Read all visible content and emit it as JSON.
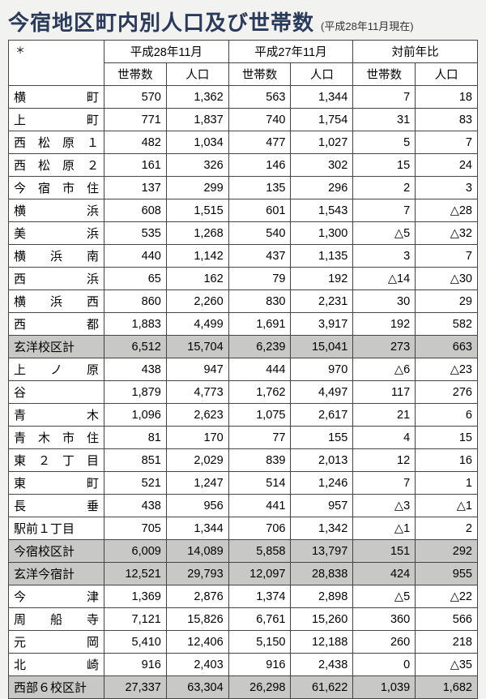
{
  "title": "今宿地区町内別人口及び世帯数",
  "subtitle": "(平成28年11月現在)",
  "year1": "平成28年11月",
  "year2": "平成27年11月",
  "year3": "対前年比",
  "sub_households": "世帯数",
  "sub_population": "人口",
  "rows": [
    {
      "name": "横町",
      "spaced": true,
      "h28h": "570",
      "h28p": "1,362",
      "h27h": "563",
      "h27p": "1,344",
      "dh": "7",
      "dp": "18",
      "shaded": false
    },
    {
      "name": "上町",
      "spaced": true,
      "h28h": "771",
      "h28p": "1,837",
      "h27h": "740",
      "h27p": "1,754",
      "dh": "31",
      "dp": "83",
      "shaded": false
    },
    {
      "name": "西松原１",
      "spaced": true,
      "h28h": "482",
      "h28p": "1,034",
      "h27h": "477",
      "h27p": "1,027",
      "dh": "5",
      "dp": "7",
      "shaded": false
    },
    {
      "name": "西松原２",
      "spaced": true,
      "h28h": "161",
      "h28p": "326",
      "h27h": "146",
      "h27p": "302",
      "dh": "15",
      "dp": "24",
      "shaded": false
    },
    {
      "name": "今宿市住",
      "spaced": true,
      "h28h": "137",
      "h28p": "299",
      "h27h": "135",
      "h27p": "296",
      "dh": "2",
      "dp": "3",
      "shaded": false
    },
    {
      "name": "横浜",
      "spaced": true,
      "h28h": "608",
      "h28p": "1,515",
      "h27h": "601",
      "h27p": "1,543",
      "dh": "7",
      "dp": "△28",
      "shaded": false
    },
    {
      "name": "美浜",
      "spaced": true,
      "h28h": "535",
      "h28p": "1,268",
      "h27h": "540",
      "h27p": "1,300",
      "dh": "△5",
      "dp": "△32",
      "shaded": false
    },
    {
      "name": "横浜南",
      "spaced": true,
      "h28h": "440",
      "h28p": "1,142",
      "h27h": "437",
      "h27p": "1,135",
      "dh": "3",
      "dp": "7",
      "shaded": false
    },
    {
      "name": "西浜",
      "spaced": true,
      "h28h": "65",
      "h28p": "162",
      "h27h": "79",
      "h27p": "192",
      "dh": "△14",
      "dp": "△30",
      "shaded": false
    },
    {
      "name": "横浜西",
      "spaced": true,
      "h28h": "860",
      "h28p": "2,260",
      "h27h": "830",
      "h27p": "2,231",
      "dh": "30",
      "dp": "29",
      "shaded": false
    },
    {
      "name": "西都",
      "spaced": true,
      "h28h": "1,883",
      "h28p": "4,499",
      "h27h": "1,691",
      "h27p": "3,917",
      "dh": "192",
      "dp": "582",
      "shaded": false
    },
    {
      "name": "玄洋校区計",
      "spaced": false,
      "h28h": "6,512",
      "h28p": "15,704",
      "h27h": "6,239",
      "h27p": "15,041",
      "dh": "273",
      "dp": "663",
      "shaded": true
    },
    {
      "name": "上ノ原",
      "spaced": true,
      "h28h": "438",
      "h28p": "947",
      "h27h": "444",
      "h27p": "970",
      "dh": "△6",
      "dp": "△23",
      "shaded": false
    },
    {
      "name": "谷",
      "spaced": true,
      "h28h": "1,879",
      "h28p": "4,773",
      "h27h": "1,762",
      "h27p": "4,497",
      "dh": "117",
      "dp": "276",
      "shaded": false
    },
    {
      "name": "青木",
      "spaced": true,
      "h28h": "1,096",
      "h28p": "2,623",
      "h27h": "1,075",
      "h27p": "2,617",
      "dh": "21",
      "dp": "6",
      "shaded": false
    },
    {
      "name": "青木市住",
      "spaced": true,
      "h28h": "81",
      "h28p": "170",
      "h27h": "77",
      "h27p": "155",
      "dh": "4",
      "dp": "15",
      "shaded": false
    },
    {
      "name": "東２丁目",
      "spaced": true,
      "h28h": "851",
      "h28p": "2,029",
      "h27h": "839",
      "h27p": "2,013",
      "dh": "12",
      "dp": "16",
      "shaded": false
    },
    {
      "name": "東町",
      "spaced": true,
      "h28h": "521",
      "h28p": "1,247",
      "h27h": "514",
      "h27p": "1,246",
      "dh": "7",
      "dp": "1",
      "shaded": false
    },
    {
      "name": "長垂",
      "spaced": true,
      "h28h": "438",
      "h28p": "956",
      "h27h": "441",
      "h27p": "957",
      "dh": "△3",
      "dp": "△1",
      "shaded": false
    },
    {
      "name": "駅前１丁目",
      "spaced": false,
      "h28h": "705",
      "h28p": "1,344",
      "h27h": "706",
      "h27p": "1,342",
      "dh": "△1",
      "dp": "2",
      "shaded": false
    },
    {
      "name": "今宿校区計",
      "spaced": false,
      "h28h": "6,009",
      "h28p": "14,089",
      "h27h": "5,858",
      "h27p": "13,797",
      "dh": "151",
      "dp": "292",
      "shaded": true
    },
    {
      "name": "玄洋今宿計",
      "spaced": false,
      "h28h": "12,521",
      "h28p": "29,793",
      "h27h": "12,097",
      "h27p": "28,838",
      "dh": "424",
      "dp": "955",
      "shaded": true
    },
    {
      "name": "今津",
      "spaced": true,
      "h28h": "1,369",
      "h28p": "2,876",
      "h27h": "1,374",
      "h27p": "2,898",
      "dh": "△5",
      "dp": "△22",
      "shaded": false
    },
    {
      "name": "周船寺",
      "spaced": true,
      "h28h": "7,121",
      "h28p": "15,826",
      "h27h": "6,761",
      "h27p": "15,260",
      "dh": "360",
      "dp": "566",
      "shaded": false
    },
    {
      "name": "元岡",
      "spaced": true,
      "h28h": "5,410",
      "h28p": "12,406",
      "h27h": "5,150",
      "h27p": "12,188",
      "dh": "260",
      "dp": "218",
      "shaded": false
    },
    {
      "name": "北崎",
      "spaced": true,
      "h28h": "916",
      "h28p": "2,403",
      "h27h": "916",
      "h27p": "2,438",
      "dh": "0",
      "dp": "△35",
      "shaded": false
    },
    {
      "name": "西部６校区計",
      "spaced": false,
      "h28h": "27,337",
      "h28p": "63,304",
      "h27h": "26,298",
      "h27p": "61,622",
      "dh": "1,039",
      "dp": "1,682",
      "shaded": true
    }
  ]
}
